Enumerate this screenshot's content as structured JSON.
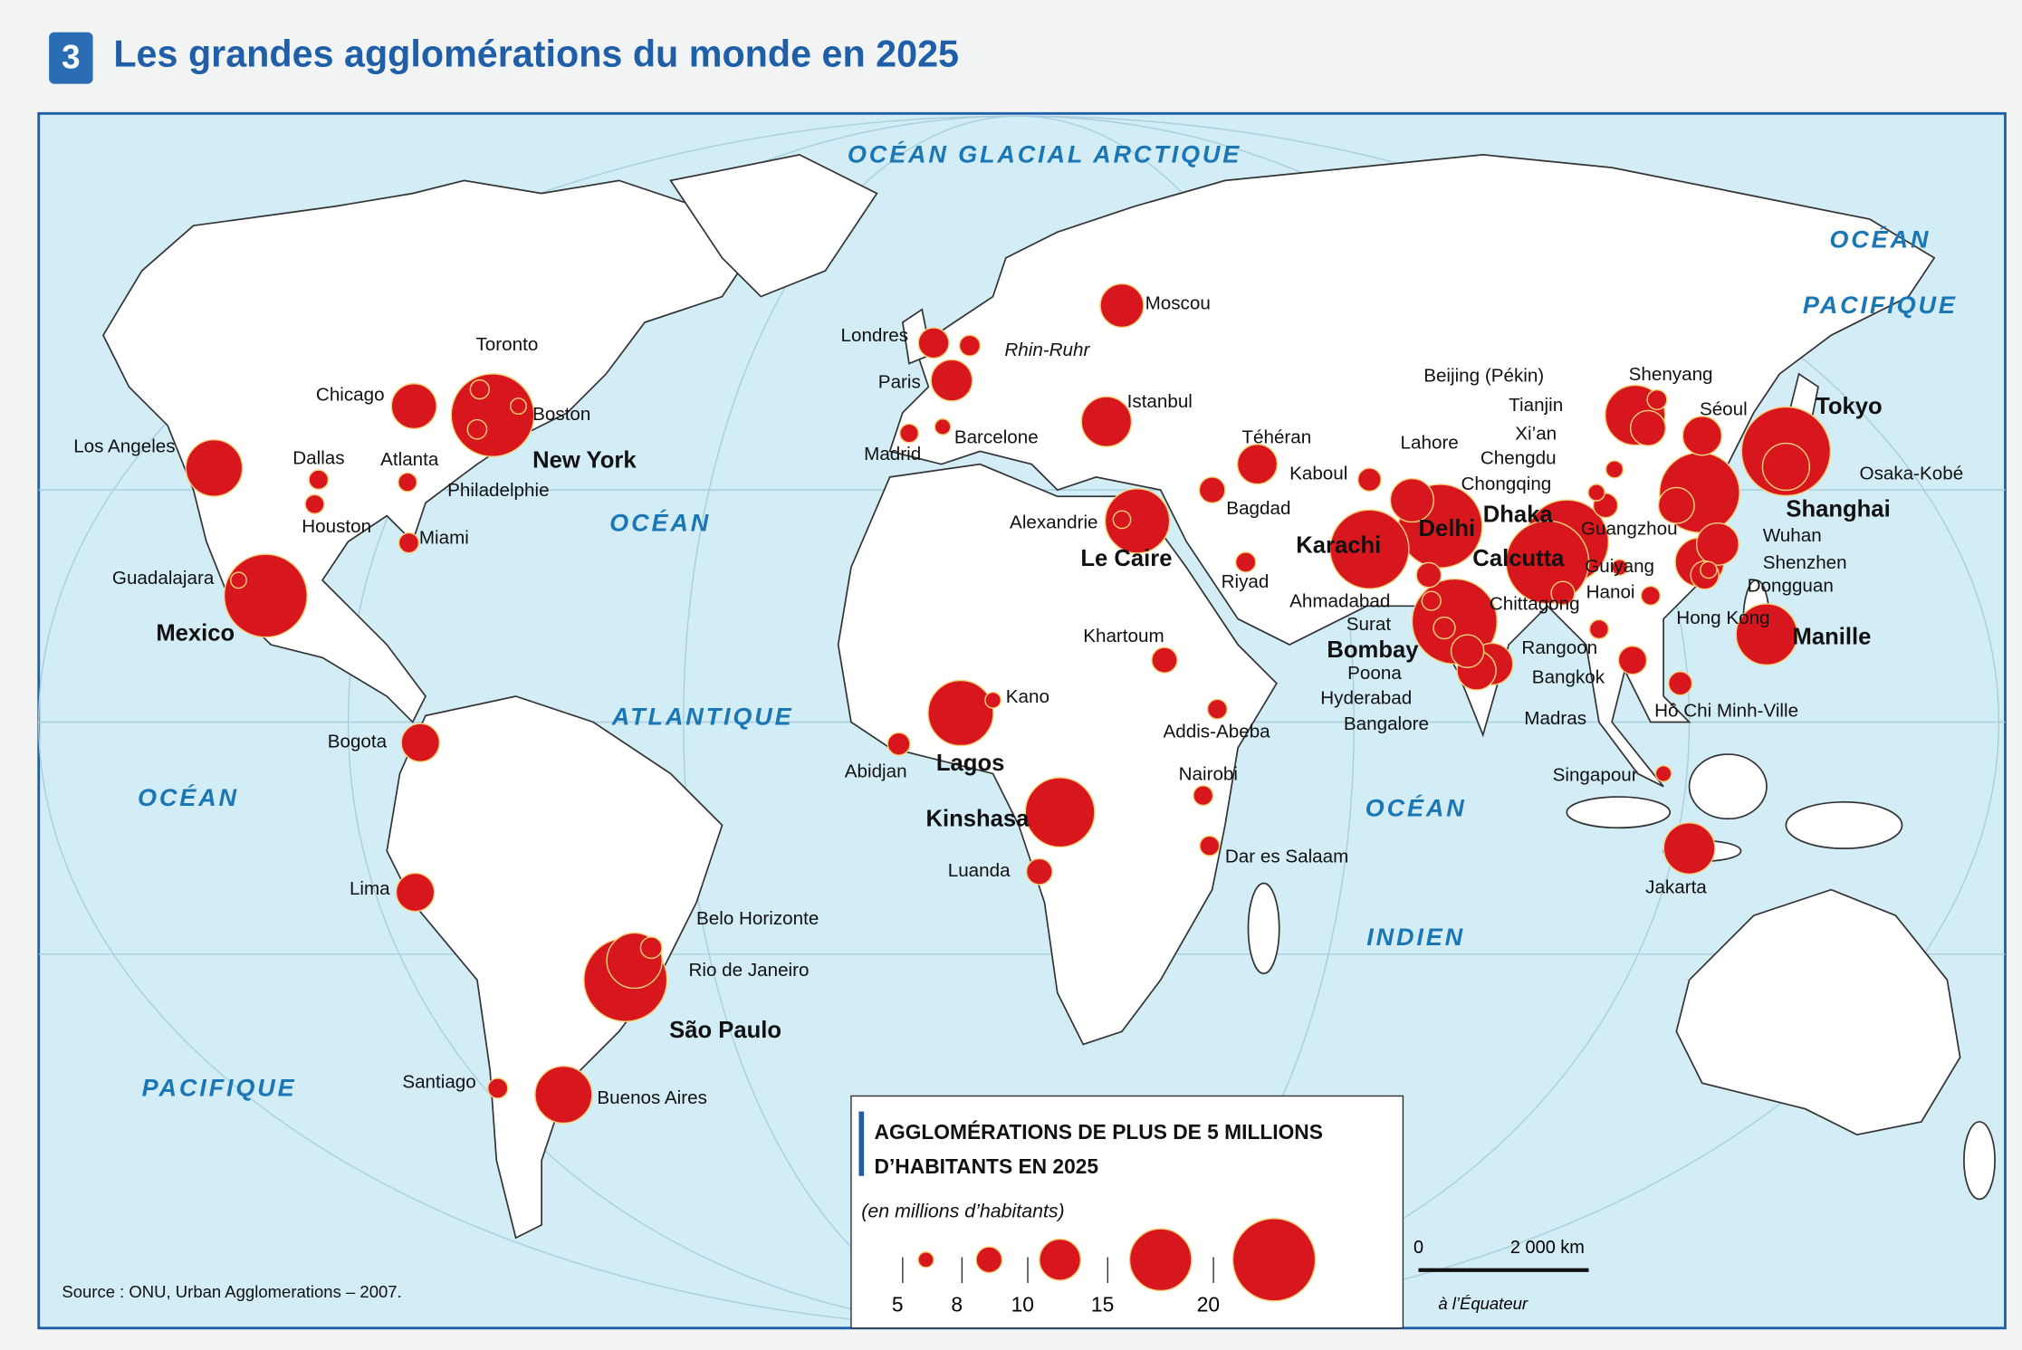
{
  "header": {
    "number": "3",
    "title": "Les grandes agglomérations du monde en 2025"
  },
  "oceans": [
    "OCÉAN GLACIAL ARCTIQUE",
    "OCÉAN",
    "PACIFIQUE",
    "OCÉAN",
    "ATLANTIQUE",
    "OCÉAN",
    "PACIFIQUE",
    "OCÉAN",
    "INDIEN"
  ],
  "cities": [
    {
      "name": "Tokyo",
      "population": 36.4
    },
    {
      "name": "Bombay",
      "population": 26.4
    },
    {
      "name": "Delhi",
      "population": 22.5
    },
    {
      "name": "Dhaka",
      "population": 22
    },
    {
      "name": "Calcutta",
      "population": 20.6
    },
    {
      "name": "São Paulo",
      "population": 21.4
    },
    {
      "name": "Mexico",
      "population": 21
    },
    {
      "name": "New York",
      "population": 20.6
    },
    {
      "name": "Shanghai",
      "population": 19.4
    },
    {
      "name": "Karachi",
      "population": 19.1
    },
    {
      "name": "Kinshasa",
      "population": 16.8
    },
    {
      "name": "Lagos",
      "population": 15.8
    },
    {
      "name": "Le Caire",
      "population": 15.6
    },
    {
      "name": "Manille",
      "population": 14.8
    },
    {
      "name": "Beijing (Pékin)",
      "population": 14.5
    },
    {
      "name": "Buenos Aires",
      "population": 13.8
    },
    {
      "name": "Los Angeles",
      "population": 13.7
    },
    {
      "name": "Rio de Janeiro",
      "population": 13.4
    },
    {
      "name": "Jakarta",
      "population": 12.4
    },
    {
      "name": "Istanbul",
      "population": 12.1
    },
    {
      "name": "Guangzhou",
      "population": 11.8
    },
    {
      "name": "Osaka-Kobé",
      "population": 11.4
    },
    {
      "name": "Moscou",
      "population": 10.5
    },
    {
      "name": "Lahore",
      "population": 10.5
    },
    {
      "name": "Shenzhen",
      "population": 10.2
    },
    {
      "name": "Madras",
      "population": 10.1
    },
    {
      "name": "Paris",
      "population": 10
    },
    {
      "name": "Chicago",
      "population": 10.9
    },
    {
      "name": "Téhéran",
      "population": 9.8
    },
    {
      "name": "Séoul",
      "population": 9.7
    },
    {
      "name": "Bangalore",
      "population": 9.7
    },
    {
      "name": "Lima",
      "population": 9.6
    },
    {
      "name": "Bogota",
      "population": 9.6
    },
    {
      "name": "Wuhan",
      "population": 9.3
    },
    {
      "name": "Tianjin",
      "population": 9.2
    },
    {
      "name": "Londres",
      "population": 8.6
    },
    {
      "name": "Hyderabad",
      "population": 8.9
    },
    {
      "name": "Hong Kong",
      "population": 8.3
    },
    {
      "name": "Bangkok",
      "population": 8.3
    },
    {
      "name": "Chongqing",
      "population": 7.6
    },
    {
      "name": "Luanda",
      "population": 8
    },
    {
      "name": "Hô Chi Minh-Ville",
      "population": 7.3
    },
    {
      "name": "Bagdad",
      "population": 8
    },
    {
      "name": "Riyad",
      "population": 6.3
    },
    {
      "name": "Santiago",
      "population": 6.3
    },
    {
      "name": "Miami",
      "population": 6.3
    },
    {
      "name": "Philadelphie",
      "population": 6.1
    },
    {
      "name": "Belo Horizonte",
      "population": 6.7
    },
    {
      "name": "Surat",
      "population": 6
    },
    {
      "name": "Ahmadabad",
      "population": 7.7
    },
    {
      "name": "Poona",
      "population": 6.8
    },
    {
      "name": "Rangoon",
      "population": 6
    },
    {
      "name": "Chittagong",
      "population": 7.3
    },
    {
      "name": "Dallas",
      "population": 6.1
    },
    {
      "name": "Houston",
      "population": 6
    },
    {
      "name": "Atlanta",
      "population": 5.9
    },
    {
      "name": "Toronto",
      "population": 6
    },
    {
      "name": "Boston",
      "population": 5.1
    },
    {
      "name": "Madrid",
      "population": 5.9
    },
    {
      "name": "Barcelone",
      "population": 5.1
    },
    {
      "name": "Rhin-Ruhr",
      "population": 6.5
    },
    {
      "name": "Kaboul",
      "population": 7.2
    },
    {
      "name": "Khartoum",
      "population": 7.9
    },
    {
      "name": "Addis-Abeba",
      "population": 6.2
    },
    {
      "name": "Nairobi",
      "population": 6.2
    },
    {
      "name": "Dar es Salaam",
      "population": 6.2
    },
    {
      "name": "Kano",
      "population": 5.1
    },
    {
      "name": "Abidjan",
      "population": 7
    },
    {
      "name": "Alexandrie",
      "population": 5.6
    },
    {
      "name": "Guadalajara",
      "population": 5.1
    },
    {
      "name": "Singapour",
      "population": 5.1
    },
    {
      "name": "Shenyang",
      "population": 6.2
    },
    {
      "name": "Xi’an",
      "population": 5.5
    },
    {
      "name": "Chengdu",
      "population": 5.3
    },
    {
      "name": "Guiyang",
      "population": 5.1
    },
    {
      "name": "Hanoi",
      "population": 6
    },
    {
      "name": "Dongguan",
      "population": 5.3
    }
  ],
  "legend": {
    "title_lines": [
      "AGGLOMÉRATIONS DE PLUS DE 5 MILLIONS",
      "D’HABITANTS EN 2025"
    ],
    "subtitle": "(en millions d’habitants)",
    "values": [
      5,
      8,
      10,
      15,
      20
    ]
  },
  "scale": {
    "zero": "0",
    "distance": "2 000 km",
    "note": "à l’Équateur"
  },
  "source": "Source : ONU, Urban Agglomerations – 2007."
}
